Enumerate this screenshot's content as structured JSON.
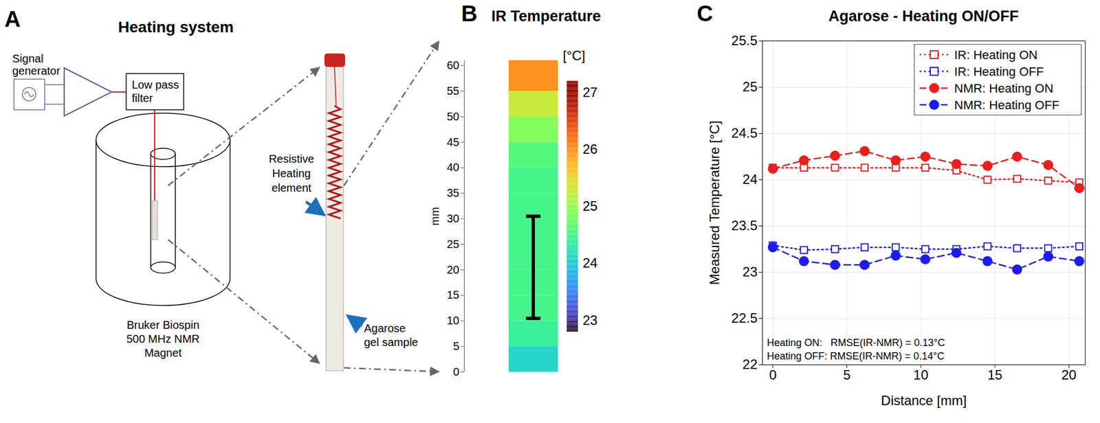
{
  "panel_a": {
    "letter": "A",
    "title": "Heating system",
    "signal_generator": [
      "Signal",
      "generator"
    ],
    "low_pass_filter": [
      "Low pass",
      "filter"
    ],
    "magnet": [
      "Bruker Biospin",
      "500 MHz NMR",
      "Magnet"
    ],
    "heating_element": [
      "Resistive",
      "Heating",
      "element"
    ],
    "sample": [
      "Agarose",
      "gel sample"
    ]
  },
  "chart_data": [
    {
      "letter": "B",
      "type": "heatmap",
      "title": "IR Temperature",
      "y_label": "mm",
      "ylim": [
        0,
        61
      ],
      "yticks": [
        0,
        5,
        10,
        15,
        20,
        25,
        30,
        35,
        40,
        45,
        50,
        55,
        60
      ],
      "bins": [
        0,
        5,
        10,
        15,
        20,
        25,
        30,
        35,
        40,
        45,
        50,
        55,
        61
      ],
      "values": [
        24.1,
        24.4,
        24.5,
        24.5,
        24.5,
        24.5,
        24.5,
        24.5,
        24.6,
        24.9,
        25.3,
        26.0
      ],
      "bracket": [
        10.5,
        30.5
      ],
      "colorbar": {
        "label": "[°C]",
        "range": [
          22.8,
          27.2
        ],
        "ticks": [
          23,
          24,
          25,
          26,
          27
        ]
      }
    },
    {
      "letter": "C",
      "type": "line",
      "title": "Agarose - Heating ON/OFF",
      "x_label": "Distance [mm]",
      "y_label": "Measured Temperature [°C]",
      "x": [
        0,
        2.1,
        4.2,
        6.2,
        8.3,
        10.3,
        12.4,
        14.5,
        16.5,
        18.6,
        20.7
      ],
      "series": [
        {
          "name": "IR: Heating ON",
          "color": "#ee1c1c",
          "marker": "square-open",
          "line_style": "dotted",
          "values": [
            24.13,
            24.13,
            24.13,
            24.13,
            24.13,
            24.13,
            24.1,
            24.0,
            24.01,
            23.99,
            23.97
          ]
        },
        {
          "name": "IR: Heating OFF",
          "color": "#1c1cee",
          "marker": "square-open",
          "line_style": "dotted",
          "values": [
            23.29,
            23.24,
            23.25,
            23.27,
            23.27,
            23.25,
            23.25,
            23.28,
            23.26,
            23.26,
            23.28
          ]
        },
        {
          "name": "NMR: Heating ON",
          "color": "#ee1c1c",
          "marker": "circle",
          "line_style": "dashed",
          "values": [
            24.12,
            24.21,
            24.26,
            24.31,
            24.21,
            24.25,
            24.17,
            24.15,
            24.25,
            24.16,
            23.91
          ]
        },
        {
          "name": "NMR: Heating OFF",
          "color": "#1c1cee",
          "marker": "circle",
          "line_style": "dashed",
          "values": [
            23.27,
            23.12,
            23.08,
            23.08,
            23.18,
            23.14,
            23.21,
            23.12,
            23.03,
            23.17,
            23.12
          ]
        }
      ],
      "xlim": [
        -0.7,
        21.1
      ],
      "xticks": [
        0,
        5,
        10,
        15,
        20
      ],
      "ylim": [
        22,
        25.5
      ],
      "yticks": [
        22,
        22.5,
        23,
        23.5,
        24,
        24.5,
        25,
        25.5
      ],
      "grid": true,
      "legend": "top-right",
      "annotations": [
        "Heating ON:   RMSE(IR-NMR) = 0.13°C",
        "Heating OFF: RMSE(IR-NMR) = 0.14°C"
      ]
    }
  ]
}
